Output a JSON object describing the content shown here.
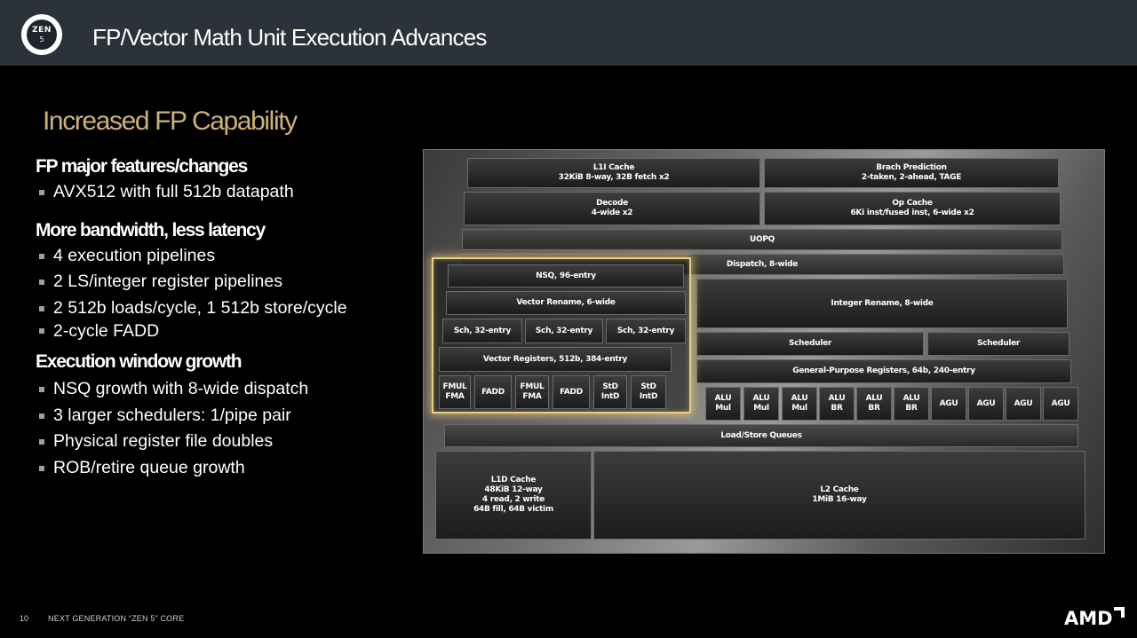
{
  "header": {
    "logo_text": "ZEN",
    "logo_num": "5",
    "title": "FP/Vector Math Unit Execution Advances"
  },
  "section_title": "Increased FP Capability",
  "groups": [
    {
      "title": "FP major features/changes",
      "bullets": [
        "AVX512 with full 512b datapath"
      ]
    },
    {
      "title": "More bandwidth, less latency",
      "bullets": [
        "4 execution pipelines",
        "2 LS/integer register pipelines",
        "2 512b loads/cycle, 1 512b store/cycle",
        "2-cycle FADD"
      ]
    },
    {
      "title": "Execution window growth",
      "bullets": [
        "NSQ growth with 8-wide dispatch",
        "3 larger schedulers: 1/pipe pair",
        "Physical register file doubles",
        "ROB/retire queue growth"
      ]
    }
  ],
  "diagram": {
    "l1i": "L1I Cache\n32KiB 8-way, 32B fetch x2",
    "bp": "Brach Prediction\n2-taken, 2-ahead, TAGE",
    "decode": "Decode\n4-wide x2",
    "opcache": "Op Cache\n6Ki inst/fused inst, 6-wide x2",
    "uopq": "UOPQ",
    "dispatch": "Dispatch, 8-wide",
    "nsq": "NSQ, 96-entry",
    "vrename": "Vector Rename, 6-wide",
    "irename": "Integer Rename, 8-wide",
    "sch1": "Sch, 32-entry",
    "sch2": "Sch, 32-entry",
    "sch3": "Sch, 32-entry",
    "scheduler1": "Scheduler",
    "scheduler2": "Scheduler",
    "vregs": "Vector Registers, 512b, 384-entry",
    "gpr": "General-Purpose Registers, 64b, 240-entry",
    "fp_units": [
      "FMUL\nFMA",
      "FADD",
      "FMUL\nFMA",
      "FADD",
      "StD\nIntD",
      "StD\nIntD"
    ],
    "int_units": [
      "ALU\nMul",
      "ALU\nMul",
      "ALU\nMul",
      "ALU\nBR",
      "ALU\nBR",
      "ALU\nBR",
      "AGU",
      "AGU",
      "AGU",
      "AGU"
    ],
    "lsq": "Load/Store Queues",
    "l1d": "L1D Cache\n48KiB 12-way\n4 read, 2 write\n64B fill, 64B victim",
    "l2": "L2 Cache\n1MiB 16-way"
  },
  "footer": {
    "page": "10",
    "text": "NEXT GENERATION “ZEN 5” CORE",
    "brand": "AMD"
  }
}
